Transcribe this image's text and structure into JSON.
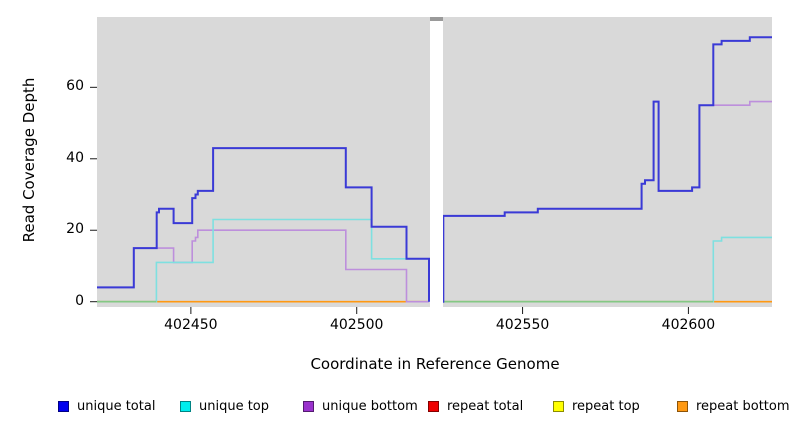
{
  "legend": {
    "position": "bottom",
    "items": [
      {
        "label": "unique total",
        "color": "#0000EE"
      },
      {
        "label": "unique top",
        "color": "#00EEEE"
      },
      {
        "label": "unique bottom",
        "color": "#9A32CD"
      },
      {
        "label": "repeat total",
        "color": "#EE0000"
      },
      {
        "label": "repeat top",
        "color": "#FFFF00"
      },
      {
        "label": "repeat bottom",
        "color": "#FF9912"
      }
    ]
  },
  "colors": {
    "panel_background": "#d9d9d9",
    "page_background": "#ffffff",
    "gap_band": "#ffffff",
    "gap_cap": "#9a9a9a",
    "tick": "#1a1a1a",
    "baseline_blend_green": "#84c884"
  },
  "chart_data": {
    "type": "line",
    "subtype": "step",
    "title": "",
    "xlabel": "Coordinate in Reference Genome",
    "ylabel": "Read Coverage Depth",
    "grid": false,
    "x_domain": [
      402421.7,
      402625.2
    ],
    "ylim": [
      0,
      79
    ],
    "x_axis": {
      "ticks": [
        402450,
        402500,
        402550,
        402600
      ]
    },
    "y_axis": {
      "ticks": [
        0,
        20,
        40,
        60
      ]
    },
    "gap": {
      "from": 402521.8,
      "to": 402526.0
    },
    "series": [
      {
        "name": "repeat total",
        "color": "#EE0000",
        "width": 1,
        "segments": [
          [
            [
              402421.7,
              0
            ],
            [
              402521.8,
              0
            ]
          ],
          [
            [
              402526.0,
              0
            ],
            [
              402625.2,
              0
            ]
          ]
        ]
      },
      {
        "name": "repeat top",
        "color": "#FFFF00",
        "width": 1,
        "segments": [
          [
            [
              402421.7,
              0
            ],
            [
              402521.8,
              0
            ]
          ],
          [
            [
              402526.0,
              0
            ],
            [
              402625.2,
              0
            ]
          ]
        ]
      },
      {
        "name": "repeat bottom",
        "color": "#FF9912",
        "width": 1.6,
        "segments": [
          [
            [
              402421.7,
              0
            ],
            [
              402521.8,
              0
            ]
          ],
          [
            [
              402526.0,
              0
            ],
            [
              402625.2,
              0
            ]
          ]
        ]
      },
      {
        "name": "unique bottom",
        "color": "#bd8fdc",
        "width": 1.6,
        "segments": [
          [
            [
              402421.7,
              4
            ],
            [
              402432.8,
              15
            ],
            [
              402444.8,
              11
            ],
            [
              402450.4,
              17
            ],
            [
              402451.4,
              18
            ],
            [
              402452.1,
              20
            ],
            [
              402496.7,
              9
            ],
            [
              402515.0,
              0
            ],
            [
              402521.8,
              0
            ]
          ],
          [
            [
              402526.0,
              0
            ],
            [
              402526.1,
              24
            ],
            [
              402544.6,
              25
            ],
            [
              402554.6,
              26
            ],
            [
              402585.9,
              33
            ],
            [
              402586.9,
              34
            ],
            [
              402589.5,
              56
            ],
            [
              402591.0,
              31
            ],
            [
              402601.1,
              32
            ],
            [
              402603.3,
              55
            ],
            [
              402618.5,
              56
            ],
            [
              402625.2,
              56
            ]
          ]
        ]
      },
      {
        "name": "unique top",
        "color": "#7ee0e0",
        "width": 1.6,
        "segments": [
          [
            [
              402421.7,
              0
            ],
            [
              402439.6,
              11
            ],
            [
              402456.7,
              23
            ],
            [
              402504.5,
              12
            ],
            [
              402521.8,
              0
            ]
          ],
          [
            [
              402526.0,
              0
            ],
            [
              402607.5,
              17
            ],
            [
              402610.0,
              18
            ],
            [
              402625.2,
              18
            ]
          ]
        ]
      },
      {
        "name": "unique total",
        "color": "#3a3ad6",
        "width": 2,
        "segments": [
          [
            [
              402421.7,
              4
            ],
            [
              402432.8,
              15
            ],
            [
              402439.7,
              25
            ],
            [
              402440.4,
              26
            ],
            [
              402444.8,
              22
            ],
            [
              402450.4,
              29
            ],
            [
              402451.4,
              30
            ],
            [
              402452.1,
              31
            ],
            [
              402456.7,
              43
            ],
            [
              402496.7,
              32
            ],
            [
              402504.5,
              21
            ],
            [
              402515.0,
              12
            ],
            [
              402521.8,
              0
            ]
          ],
          [
            [
              402526.0,
              0
            ],
            [
              402526.1,
              24
            ],
            [
              402544.6,
              25
            ],
            [
              402554.6,
              26
            ],
            [
              402585.9,
              33
            ],
            [
              402586.9,
              34
            ],
            [
              402589.5,
              56
            ],
            [
              402591.0,
              31
            ],
            [
              402601.1,
              32
            ],
            [
              402603.3,
              55
            ],
            [
              402607.5,
              72
            ],
            [
              402610.0,
              73
            ],
            [
              402618.5,
              74
            ],
            [
              402625.2,
              74
            ]
          ]
        ]
      }
    ],
    "zero_line_blend_segments": [
      [
        402421.7,
        402439.6
      ],
      [
        402526.0,
        402607.5
      ]
    ]
  }
}
